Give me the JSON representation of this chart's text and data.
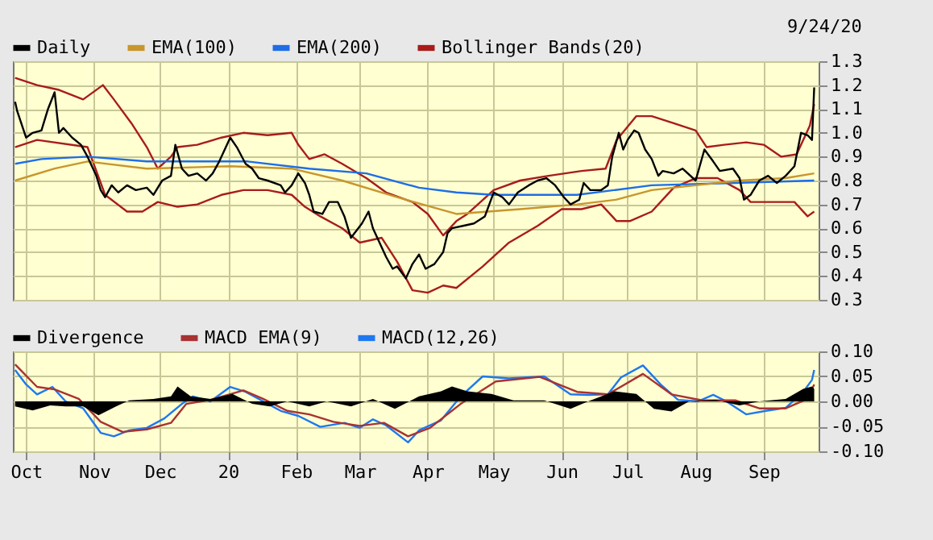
{
  "chart_data": [
    {
      "type": "line",
      "annotations": [
        "9/24/20"
      ],
      "xlim": [
        "2019-09-25",
        "2020-09-26"
      ],
      "xticks": [
        {
          "value": "2019-10-01",
          "label": null
        },
        {
          "value": "2019-11-01",
          "label": null
        },
        {
          "value": "2019-12-01",
          "label": null
        },
        {
          "value": "2020-01-01",
          "label": null
        },
        {
          "value": "2020-02-01",
          "label": null
        },
        {
          "value": "2020-03-01",
          "label": null
        },
        {
          "value": "2020-04-01",
          "label": null
        },
        {
          "value": "2020-05-01",
          "label": null
        },
        {
          "value": "2020-06-01",
          "label": null
        },
        {
          "value": "2020-07-01",
          "label": null
        },
        {
          "value": "2020-08-01",
          "label": null
        },
        {
          "value": "2020-09-01",
          "label": null
        }
      ],
      "ylim": [
        0.3,
        1.3
      ],
      "yticks": [
        0.3,
        0.4,
        0.5,
        0.6,
        0.7,
        0.8,
        0.9,
        {
          "value": 1.0,
          "label": "1.0"
        },
        1.1,
        1.2,
        1.3
      ],
      "tick_labels": "y",
      "grid": true,
      "legend": "top",
      "marker": "none",
      "series": [
        {
          "name": "Daily",
          "color": "#000000",
          "x": [
            "2019-09-26",
            "2019-09-27",
            "2019-10-01",
            "2019-10-04",
            "2019-10-08",
            "2019-10-11",
            "2019-10-14",
            "2019-10-16",
            "2019-10-18",
            "2019-10-22",
            "2019-10-26",
            "2019-10-29",
            "2019-11-02",
            "2019-11-04",
            "2019-11-06",
            "2019-11-09",
            "2019-11-12",
            "2019-11-16",
            "2019-11-20",
            "2019-11-25",
            "2019-11-28",
            "2019-12-02",
            "2019-12-06",
            "2019-12-08",
            "2019-12-11",
            "2019-12-14",
            "2019-12-18",
            "2019-12-22",
            "2019-12-25",
            "2019-12-28",
            "2020-01-02",
            "2020-01-05",
            "2020-01-09",
            "2020-01-12",
            "2020-01-15",
            "2020-01-19",
            "2020-01-25",
            "2020-01-27",
            "2020-01-30",
            "2020-02-02",
            "2020-02-05",
            "2020-02-07",
            "2020-02-09",
            "2020-02-13",
            "2020-02-16",
            "2020-02-20",
            "2020-02-23",
            "2020-02-26",
            "2020-03-02",
            "2020-03-05",
            "2020-03-07",
            "2020-03-10",
            "2020-03-13",
            "2020-03-16",
            "2020-03-18",
            "2020-03-22",
            "2020-03-25",
            "2020-03-28",
            "2020-03-31",
            "2020-04-04",
            "2020-04-08",
            "2020-04-10",
            "2020-04-12",
            "2020-04-17",
            "2020-04-22",
            "2020-04-27",
            "2020-05-01",
            "2020-05-05",
            "2020-05-08",
            "2020-05-12",
            "2020-05-17",
            "2020-05-21",
            "2020-05-25",
            "2020-05-29",
            "2020-06-02",
            "2020-06-05",
            "2020-06-09",
            "2020-06-11",
            "2020-06-14",
            "2020-06-19",
            "2020-06-22",
            "2020-06-24",
            "2020-06-27",
            "2020-06-29",
            "2020-07-01",
            "2020-07-04",
            "2020-07-06",
            "2020-07-09",
            "2020-07-12",
            "2020-07-15",
            "2020-07-17",
            "2020-07-22",
            "2020-07-26",
            "2020-08-01",
            "2020-08-05",
            "2020-08-09",
            "2020-08-12",
            "2020-08-18",
            "2020-08-21",
            "2020-08-23",
            "2020-08-26",
            "2020-08-30",
            "2020-09-03",
            "2020-09-07",
            "2020-09-11",
            "2020-09-15",
            "2020-09-18",
            "2020-09-21",
            "2020-09-23",
            "2020-09-24"
          ],
          "values": [
            1.13,
            1.09,
            0.98,
            1.0,
            1.01,
            1.1,
            1.17,
            1.0,
            1.02,
            0.98,
            0.95,
            0.9,
            0.82,
            0.76,
            0.73,
            0.78,
            0.75,
            0.78,
            0.76,
            0.77,
            0.74,
            0.8,
            0.82,
            0.95,
            0.85,
            0.82,
            0.83,
            0.8,
            0.83,
            0.88,
            0.98,
            0.94,
            0.87,
            0.85,
            0.81,
            0.8,
            0.78,
            0.75,
            0.78,
            0.83,
            0.79,
            0.74,
            0.67,
            0.66,
            0.71,
            0.71,
            0.65,
            0.56,
            0.62,
            0.67,
            0.6,
            0.54,
            0.48,
            0.43,
            0.44,
            0.39,
            0.45,
            0.49,
            0.43,
            0.45,
            0.5,
            0.58,
            0.6,
            0.61,
            0.62,
            0.65,
            0.75,
            0.73,
            0.7,
            0.75,
            0.78,
            0.8,
            0.81,
            0.78,
            0.73,
            0.7,
            0.72,
            0.79,
            0.76,
            0.76,
            0.78,
            0.9,
            1.0,
            0.93,
            0.97,
            1.01,
            1.0,
            0.93,
            0.89,
            0.82,
            0.84,
            0.83,
            0.85,
            0.8,
            0.93,
            0.88,
            0.84,
            0.85,
            0.81,
            0.72,
            0.74,
            0.8,
            0.82,
            0.79,
            0.82,
            0.86,
            1.0,
            0.99,
            0.97,
            1.19
          ]
        },
        {
          "name": "EMA(100)",
          "color": "#c8962d",
          "x": [
            "2019-09-26",
            "2019-10-14",
            "2019-10-29",
            "2019-11-25",
            "2020-01-02",
            "2020-01-30",
            "2020-02-22",
            "2020-03-18",
            "2020-04-14",
            "2020-05-13",
            "2020-06-08",
            "2020-06-26",
            "2020-07-12",
            "2020-08-01",
            "2020-08-21",
            "2020-09-11",
            "2020-09-24"
          ],
          "values": [
            0.8,
            0.85,
            0.88,
            0.85,
            0.86,
            0.85,
            0.8,
            0.73,
            0.66,
            0.68,
            0.7,
            0.72,
            0.76,
            0.78,
            0.8,
            0.81,
            0.83
          ]
        },
        {
          "name": "EMA(200)",
          "color": "#1e6ee6",
          "x": [
            "2019-09-26",
            "2019-10-08",
            "2019-10-29",
            "2019-11-25",
            "2020-01-10",
            "2020-02-07",
            "2020-03-04",
            "2020-03-28",
            "2020-04-14",
            "2020-05-01",
            "2020-06-08",
            "2020-07-12",
            "2020-08-19",
            "2020-09-24"
          ],
          "values": [
            0.87,
            0.89,
            0.9,
            0.88,
            0.88,
            0.85,
            0.83,
            0.77,
            0.75,
            0.74,
            0.74,
            0.78,
            0.79,
            0.8
          ]
        },
        {
          "name": "Bollinger Bands(20)",
          "color": "#a81c1c",
          "x": [
            "2019-09-26",
            "2019-10-06",
            "2019-10-16",
            "2019-10-27",
            "2019-11-05",
            "2019-11-10",
            "2019-11-18",
            "2019-11-25",
            "2019-11-30",
            "2019-12-06",
            "2019-12-09",
            "2019-12-18",
            "2019-12-29",
            "2020-01-08",
            "2020-01-19",
            "2020-01-30",
            "2020-02-02",
            "2020-02-07",
            "2020-02-14",
            "2020-02-22",
            "2020-03-04",
            "2020-03-13",
            "2020-03-25",
            "2020-04-01",
            "2020-04-08",
            "2020-04-14",
            "2020-04-19",
            "2020-05-01",
            "2020-05-13",
            "2020-05-26",
            "2020-06-10",
            "2020-06-21",
            "2020-06-26",
            "2020-07-05",
            "2020-07-12",
            "2020-07-22",
            "2020-08-01",
            "2020-08-06",
            "2020-08-14",
            "2020-08-24",
            "2020-09-01",
            "2020-09-09",
            "2020-09-16",
            "2020-09-22",
            "2020-09-24"
          ],
          "values": [
            1.23,
            1.2,
            1.18,
            1.14,
            1.2,
            1.14,
            1.04,
            0.94,
            0.85,
            0.9,
            0.94,
            0.95,
            0.98,
            1.0,
            0.99,
            1.0,
            0.95,
            0.89,
            0.91,
            0.87,
            0.81,
            0.75,
            0.71,
            0.66,
            0.57,
            0.63,
            0.66,
            0.76,
            0.8,
            0.82,
            0.84,
            0.85,
            0.97,
            1.07,
            1.07,
            1.04,
            1.01,
            0.94,
            0.95,
            0.96,
            0.95,
            0.9,
            0.91,
            1.03,
            1.12
          ]
        },
        {
          "color": "#a81c1c",
          "x": [
            "2019-09-26",
            "2019-10-06",
            "2019-10-29",
            "2019-11-06",
            "2019-11-16",
            "2019-11-23",
            "2019-11-30",
            "2019-12-09",
            "2019-12-18",
            "2019-12-29",
            "2020-01-08",
            "2020-01-19",
            "2020-01-30",
            "2020-02-05",
            "2020-02-12",
            "2020-02-22",
            "2020-03-01",
            "2020-03-11",
            "2020-03-18",
            "2020-03-25",
            "2020-04-01",
            "2020-04-08",
            "2020-04-14",
            "2020-04-26",
            "2020-05-08",
            "2020-05-21",
            "2020-06-01",
            "2020-06-10",
            "2020-06-19",
            "2020-06-26",
            "2020-07-02",
            "2020-07-12",
            "2020-07-22",
            "2020-08-01",
            "2020-08-11",
            "2020-08-21",
            "2020-08-26",
            "2020-09-06",
            "2020-09-15",
            "2020-09-21",
            "2020-09-24"
          ],
          "values": [
            0.94,
            0.97,
            0.94,
            0.74,
            0.67,
            0.67,
            0.71,
            0.69,
            0.7,
            0.74,
            0.76,
            0.76,
            0.74,
            0.69,
            0.65,
            0.6,
            0.54,
            0.56,
            0.46,
            0.34,
            0.33,
            0.36,
            0.35,
            0.44,
            0.54,
            0.61,
            0.68,
            0.68,
            0.7,
            0.63,
            0.63,
            0.67,
            0.77,
            0.81,
            0.81,
            0.76,
            0.71,
            0.71,
            0.71,
            0.65,
            0.67
          ]
        }
      ]
    },
    {
      "type": "line",
      "xlim": [
        "2019-09-25",
        "2020-09-26"
      ],
      "xticks": [
        {
          "value": "2019-10-01",
          "label": "Oct"
        },
        {
          "value": "2019-11-01",
          "label": "Nov"
        },
        {
          "value": "2019-12-01",
          "label": "Dec"
        },
        {
          "value": "2020-01-01",
          "label": "20"
        },
        {
          "value": "2020-02-01",
          "label": "Feb"
        },
        {
          "value": "2020-03-01",
          "label": "Mar"
        },
        {
          "value": "2020-04-01",
          "label": "Apr"
        },
        {
          "value": "2020-05-01",
          "label": "May"
        },
        {
          "value": "2020-06-01",
          "label": "Jun"
        },
        {
          "value": "2020-07-01",
          "label": "Jul"
        },
        {
          "value": "2020-08-01",
          "label": "Aug"
        },
        {
          "value": "2020-09-01",
          "label": "Sep"
        }
      ],
      "ylim": [
        -0.1,
        0.1
      ],
      "yticks": [
        {
          "value": -0.1,
          "label": "-0.10"
        },
        {
          "value": -0.05,
          "label": "-0.05"
        },
        {
          "value": 0,
          "label": "0.00"
        },
        {
          "value": 0.05,
          "label": "0.05"
        },
        {
          "value": 0.1,
          "label": "0.10"
        }
      ],
      "grid": true,
      "legend": "top",
      "marker": "none",
      "series": [
        {
          "name": "Divergence",
          "type": "area",
          "color": "#000000",
          "x": [
            "2019-09-26",
            "2019-10-04",
            "2019-10-12",
            "2019-10-19",
            "2019-10-27",
            "2019-11-03",
            "2019-11-11",
            "2019-11-17",
            "2019-11-28",
            "2019-12-06",
            "2019-12-09",
            "2019-12-15",
            "2019-12-24",
            "2020-01-03",
            "2020-01-12",
            "2020-01-20",
            "2020-01-28",
            "2020-02-07",
            "2020-02-15",
            "2020-02-26",
            "2020-03-07",
            "2020-03-17",
            "2020-03-28",
            "2020-04-07",
            "2020-04-12",
            "2020-04-19",
            "2020-04-30",
            "2020-05-10",
            "2020-05-24",
            "2020-06-05",
            "2020-06-13",
            "2020-06-25",
            "2020-07-05",
            "2020-07-13",
            "2020-07-21",
            "2020-07-29",
            "2020-08-10",
            "2020-08-21",
            "2020-08-30",
            "2020-09-11",
            "2020-09-19",
            "2020-09-23",
            "2020-09-24"
          ],
          "values": [
            -0.01,
            -0.018,
            -0.008,
            -0.01,
            -0.01,
            -0.028,
            -0.01,
            0.002,
            0.005,
            0.01,
            0.03,
            0.01,
            0.005,
            0.015,
            -0.005,
            -0.01,
            0,
            -0.01,
            0,
            -0.01,
            0.005,
            -0.015,
            0.01,
            0.02,
            0.03,
            0.02,
            0.015,
            0.002,
            0.002,
            -0.015,
            0,
            0.02,
            0.015,
            -0.015,
            -0.02,
            0,
            0.003,
            -0.008,
            0,
            0.005,
            0.025,
            0.03,
            0.025
          ]
        },
        {
          "name": "MACD EMA(9)",
          "color": "#a83232",
          "x": [
            "2019-09-26",
            "2019-10-06",
            "2019-10-14",
            "2019-10-25",
            "2019-11-04",
            "2019-11-14",
            "2019-11-25",
            "2019-12-06",
            "2019-12-13",
            "2019-12-24",
            "2020-01-08",
            "2020-01-17",
            "2020-01-28",
            "2020-02-07",
            "2020-02-18",
            "2020-03-01",
            "2020-03-12",
            "2020-03-23",
            "2020-04-02",
            "2020-04-16",
            "2020-05-02",
            "2020-05-22",
            "2020-06-08",
            "2020-06-22",
            "2020-07-08",
            "2020-07-21",
            "2020-08-04",
            "2020-08-19",
            "2020-08-30",
            "2020-09-11",
            "2020-09-21",
            "2020-09-24"
          ],
          "values": [
            0.074,
            0.029,
            0.024,
            0.005,
            -0.041,
            -0.061,
            -0.056,
            -0.043,
            -0.005,
            0.003,
            0.022,
            0.005,
            -0.019,
            -0.026,
            -0.041,
            -0.049,
            -0.043,
            -0.07,
            -0.053,
            -0.005,
            0.04,
            0.049,
            0.019,
            0.014,
            0.055,
            0.014,
            0.002,
            0.002,
            -0.014,
            -0.014,
            0.005,
            0.034
          ]
        },
        {
          "name": "MACD(12,26)",
          "color": "#1e78f0",
          "x": [
            "2019-09-26",
            "2019-10-01",
            "2019-10-06",
            "2019-10-13",
            "2019-10-19",
            "2019-10-27",
            "2019-11-04",
            "2019-11-10",
            "2019-11-17",
            "2019-11-25",
            "2019-12-03",
            "2019-12-11",
            "2019-12-16",
            "2019-12-24",
            "2020-01-02",
            "2020-01-09",
            "2020-01-17",
            "2020-01-25",
            "2020-02-02",
            "2020-02-12",
            "2020-02-23",
            "2020-03-01",
            "2020-03-07",
            "2020-03-13",
            "2020-03-23",
            "2020-03-28",
            "2020-04-07",
            "2020-04-16",
            "2020-04-26",
            "2020-05-08",
            "2020-05-24",
            "2020-06-05",
            "2020-06-13",
            "2020-06-22",
            "2020-06-28",
            "2020-07-08",
            "2020-07-16",
            "2020-07-24",
            "2020-08-02",
            "2020-08-09",
            "2020-08-15",
            "2020-08-24",
            "2020-09-02",
            "2020-09-11",
            "2020-09-19",
            "2020-09-23",
            "2020-09-24"
          ],
          "values": [
            0.063,
            0.034,
            0.014,
            0.029,
            0,
            -0.014,
            -0.063,
            -0.07,
            -0.058,
            -0.053,
            -0.034,
            -0.005,
            0.01,
            0,
            0.029,
            0.019,
            0,
            -0.019,
            -0.029,
            -0.051,
            -0.043,
            -0.053,
            -0.036,
            -0.048,
            -0.082,
            -0.058,
            -0.038,
            0.01,
            0.05,
            0.046,
            0.05,
            0.014,
            0.013,
            0.014,
            0.048,
            0.072,
            0.034,
            0.003,
            0,
            0.013,
            0,
            -0.026,
            -0.019,
            -0.013,
            0.019,
            0.043,
            0.063
          ]
        }
      ]
    }
  ]
}
